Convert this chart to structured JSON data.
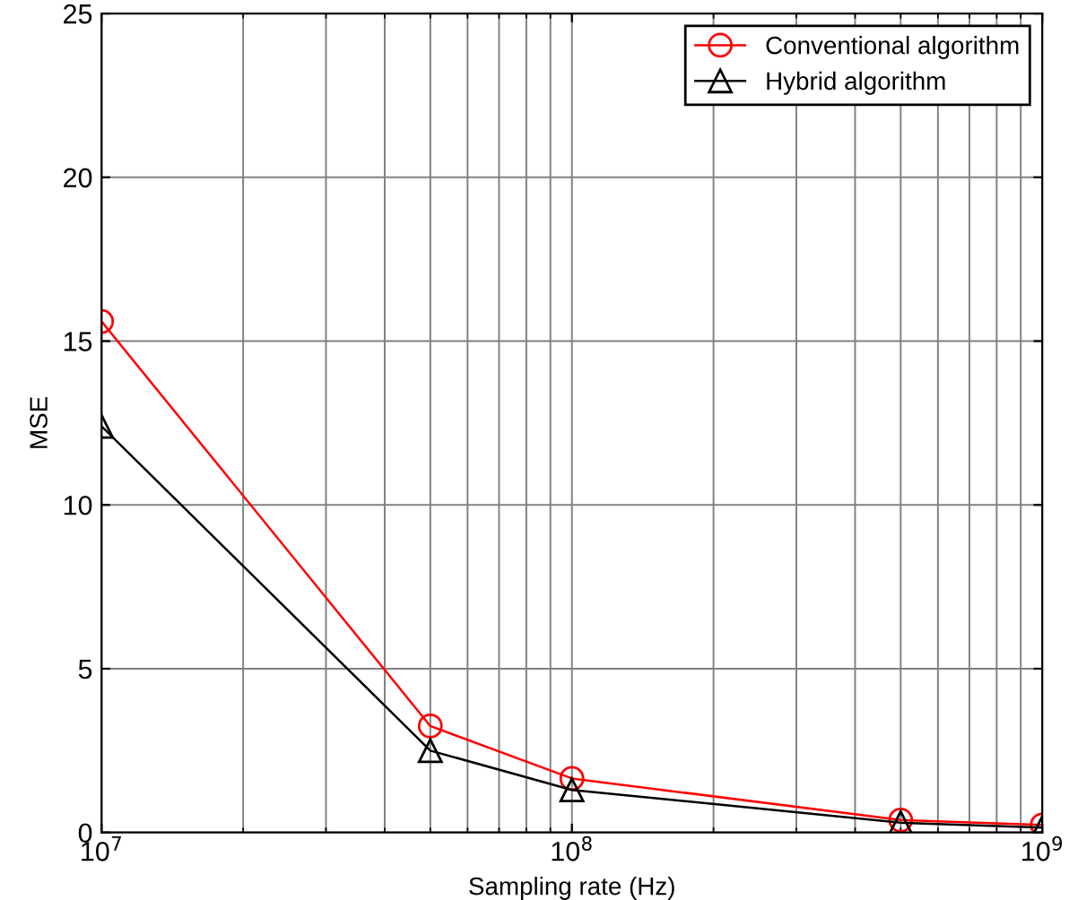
{
  "chart_data": {
    "type": "line",
    "xlabel": "Sampling rate (Hz)",
    "ylabel": "MSE",
    "log": "x",
    "x": [
      10000000,
      50000000,
      100000000,
      500000000,
      1000000000
    ],
    "series": [
      {
        "name": "Conventional algorithm",
        "color": "#ff0000",
        "marker": "circle",
        "values": [
          15.6,
          3.25,
          1.65,
          0.38,
          0.23
        ]
      },
      {
        "name": "Hybrid algorithm",
        "color": "#000000",
        "marker": "triangle",
        "values": [
          12.4,
          2.5,
          1.3,
          0.3,
          0.15
        ]
      }
    ],
    "xlim": [
      10000000,
      1000000000
    ],
    "xticks": [
      {
        "value": 10000000,
        "label": "10$^{7}$"
      },
      {
        "value": 100000000,
        "label": "10$^{8}$"
      },
      {
        "value": 1000000000,
        "label": "10$^{9}$"
      }
    ],
    "ylim": [
      0,
      25
    ],
    "yticks": [
      0,
      5,
      10,
      15,
      20,
      25
    ],
    "grid": true,
    "legend": "top right",
    "line_style": "solid"
  }
}
